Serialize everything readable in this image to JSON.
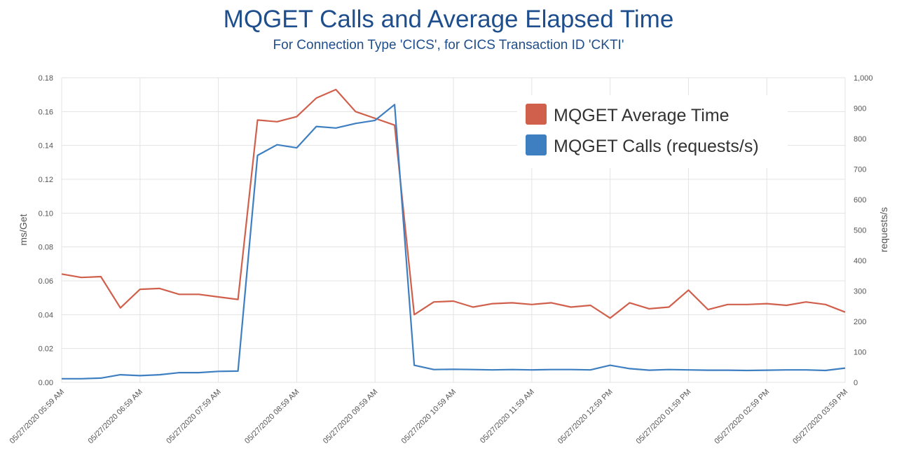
{
  "chart_data": {
    "type": "line",
    "title": "MQGET Calls and Average Elapsed Time",
    "subtitle": "For Connection Type 'CICS', for CICS Transaction ID 'CKTI'",
    "ylabel": "ms/Get",
    "y2label": "requests/s",
    "ylim": [
      0,
      0.18
    ],
    "y2lim": [
      0,
      1000
    ],
    "yticks": [
      "0.00",
      "0.02",
      "0.04",
      "0.06",
      "0.08",
      "0.10",
      "0.12",
      "0.14",
      "0.16",
      "0.18"
    ],
    "y2ticks": [
      "0",
      "100",
      "200",
      "300",
      "400",
      "500",
      "600",
      "700",
      "800",
      "900",
      "1,000"
    ],
    "xticks": [
      "05/27/2020 05:59 AM",
      "05/27/2020 06:59 AM",
      "05/27/2020 07:59 AM",
      "05/27/2020 08:59 AM",
      "05/27/2020 09:59 AM",
      "05/27/2020 10:59 AM",
      "05/27/2020 11:59 AM",
      "05/27/2020 12:59 PM",
      "05/27/2020 01:59 PM",
      "05/27/2020 02:59 PM",
      "05/27/2020 03:59 PM"
    ],
    "grid": true,
    "legend_position": "top-right",
    "series": [
      {
        "name": "MQGET Average Time",
        "axis": "left",
        "color": "#d0604c",
        "values": [
          0.064,
          0.062,
          0.0625,
          0.044,
          0.055,
          0.0555,
          0.052,
          0.052,
          0.0505,
          0.049,
          0.155,
          0.154,
          0.157,
          0.168,
          0.173,
          0.16,
          0.156,
          0.152,
          0.04,
          0.0475,
          0.048,
          0.0445,
          0.0465,
          0.047,
          0.046,
          0.047,
          0.0445,
          0.0455,
          0.038,
          0.047,
          0.0435,
          0.0445,
          0.0545,
          0.043,
          0.046,
          0.046,
          0.0465,
          0.0455,
          0.0475,
          0.046,
          0.0415
        ]
      },
      {
        "name": "MQGET Calls (requests/s)",
        "axis": "right",
        "color": "#3e7fc1",
        "values": [
          12,
          12,
          14,
          25,
          22,
          25,
          32,
          32,
          36,
          37,
          745,
          780,
          770,
          840,
          835,
          850,
          860,
          912,
          56,
          42,
          43,
          42,
          41,
          42,
          41,
          42,
          42,
          41,
          56,
          45,
          40,
          42,
          41,
          40,
          40,
          39,
          40,
          41,
          41,
          39,
          47
        ]
      }
    ]
  }
}
